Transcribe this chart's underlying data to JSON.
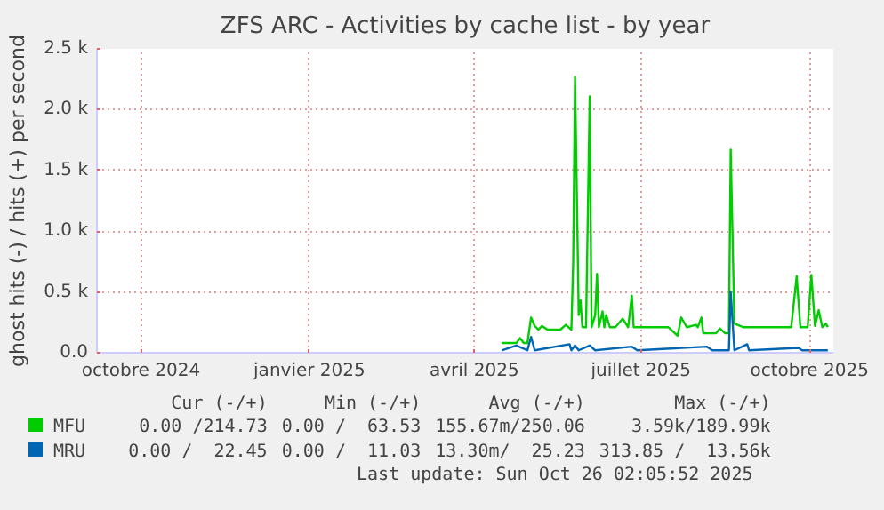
{
  "chart_data": {
    "type": "line",
    "title": "ZFS ARC - Activities by cache list - by year",
    "ylabel": "ghost hits (-) / hits (+) per second",
    "xlim": [
      "2024-09-07",
      "2025-10-14"
    ],
    "xticks": [
      {
        "value": "2024-10-01",
        "label": "octobre 2024"
      },
      {
        "value": "2025-01-01",
        "label": "janvier 2025"
      },
      {
        "value": "2025-04-01",
        "label": "avril 2025"
      },
      {
        "value": "2025-07-01",
        "label": "juillet 2025"
      },
      {
        "value": "2025-10-01",
        "label": "octobre 2025"
      }
    ],
    "ylim": [
      0,
      2500
    ],
    "yticks": [
      {
        "value": 0,
        "label": "0.0"
      },
      {
        "value": 500,
        "label": "0.5 k"
      },
      {
        "value": 1000,
        "label": "1.0 k"
      },
      {
        "value": 1500,
        "label": "1.5 k"
      },
      {
        "value": 2000,
        "label": "2.0 k"
      },
      {
        "value": 2500,
        "label": "2.5 k"
      }
    ],
    "grid": true,
    "legend": "bottom",
    "marker": "none",
    "line_style": "solid",
    "series": [
      {
        "name": "MFU",
        "color": "#00cc00",
        "x": [
          "2025-04-16",
          "2025-04-24",
          "2025-04-26",
          "2025-04-28",
          "2025-04-30",
          "2025-05-02",
          "2025-05-04",
          "2025-05-06",
          "2025-05-08",
          "2025-05-11",
          "2025-05-18",
          "2025-05-21",
          "2025-05-24",
          "2025-05-25",
          "2025-05-26",
          "2025-05-28",
          "2025-05-29",
          "2025-05-30",
          "2025-06-01",
          "2025-06-03",
          "2025-06-04",
          "2025-06-06",
          "2025-06-07",
          "2025-06-08",
          "2025-06-10",
          "2025-06-11",
          "2025-06-12",
          "2025-06-14",
          "2025-06-17",
          "2025-06-21",
          "2025-06-24",
          "2025-06-26",
          "2025-06-27",
          "2025-07-03",
          "2025-07-08",
          "2025-07-16",
          "2025-07-21",
          "2025-07-23",
          "2025-07-26",
          "2025-07-31",
          "2025-08-01",
          "2025-08-03",
          "2025-08-04",
          "2025-08-11",
          "2025-08-13",
          "2025-08-16",
          "2025-08-18",
          "2025-08-19",
          "2025-08-21",
          "2025-08-26",
          "2025-09-02",
          "2025-09-07",
          "2025-09-21",
          "2025-09-24",
          "2025-09-26",
          "2025-09-30",
          "2025-10-02",
          "2025-10-04",
          "2025-10-06",
          "2025-10-08",
          "2025-10-10",
          "2025-10-11"
        ],
        "values": [
          80,
          80,
          120,
          80,
          80,
          290,
          220,
          190,
          220,
          190,
          190,
          230,
          190,
          750,
          2270,
          310,
          430,
          210,
          210,
          2110,
          210,
          310,
          650,
          210,
          340,
          210,
          310,
          210,
          210,
          280,
          210,
          470,
          210,
          210,
          210,
          210,
          140,
          290,
          210,
          230,
          210,
          290,
          160,
          160,
          200,
          160,
          160,
          1670,
          240,
          210,
          210,
          210,
          210,
          630,
          210,
          210,
          640,
          220,
          350,
          210,
          240,
          210
        ]
      },
      {
        "name": "MRU",
        "color": "#0066b3",
        "x": [
          "2025-04-16",
          "2025-04-24",
          "2025-04-30",
          "2025-05-02",
          "2025-05-04",
          "2025-05-23",
          "2025-05-24",
          "2025-05-26",
          "2025-05-28",
          "2025-06-03",
          "2025-06-06",
          "2025-06-26",
          "2025-06-29",
          "2025-08-06",
          "2025-08-09",
          "2025-08-18",
          "2025-08-19",
          "2025-08-21",
          "2025-08-28",
          "2025-08-29",
          "2025-09-25",
          "2025-09-27",
          "2025-10-11"
        ],
        "values": [
          20,
          60,
          20,
          130,
          20,
          70,
          20,
          60,
          20,
          60,
          20,
          50,
          20,
          50,
          20,
          20,
          500,
          20,
          70,
          20,
          40,
          20,
          20
        ]
      }
    ],
    "annotations": [
      "Cur (-/+)",
      "Min (-/+)",
      "Avg (-/+)",
      "Max (-/+)",
      "0.00 /214.73",
      "0.00 /  63.53",
      "155.67m/250.06",
      "3.59k/189.99k",
      "0.00 /  22.45",
      "0.00 /  11.03",
      "13.30m/  25.23",
      "313.85 /  13.56k",
      "Last update: Sun Oct 26 02:05:52 2025"
    ]
  }
}
